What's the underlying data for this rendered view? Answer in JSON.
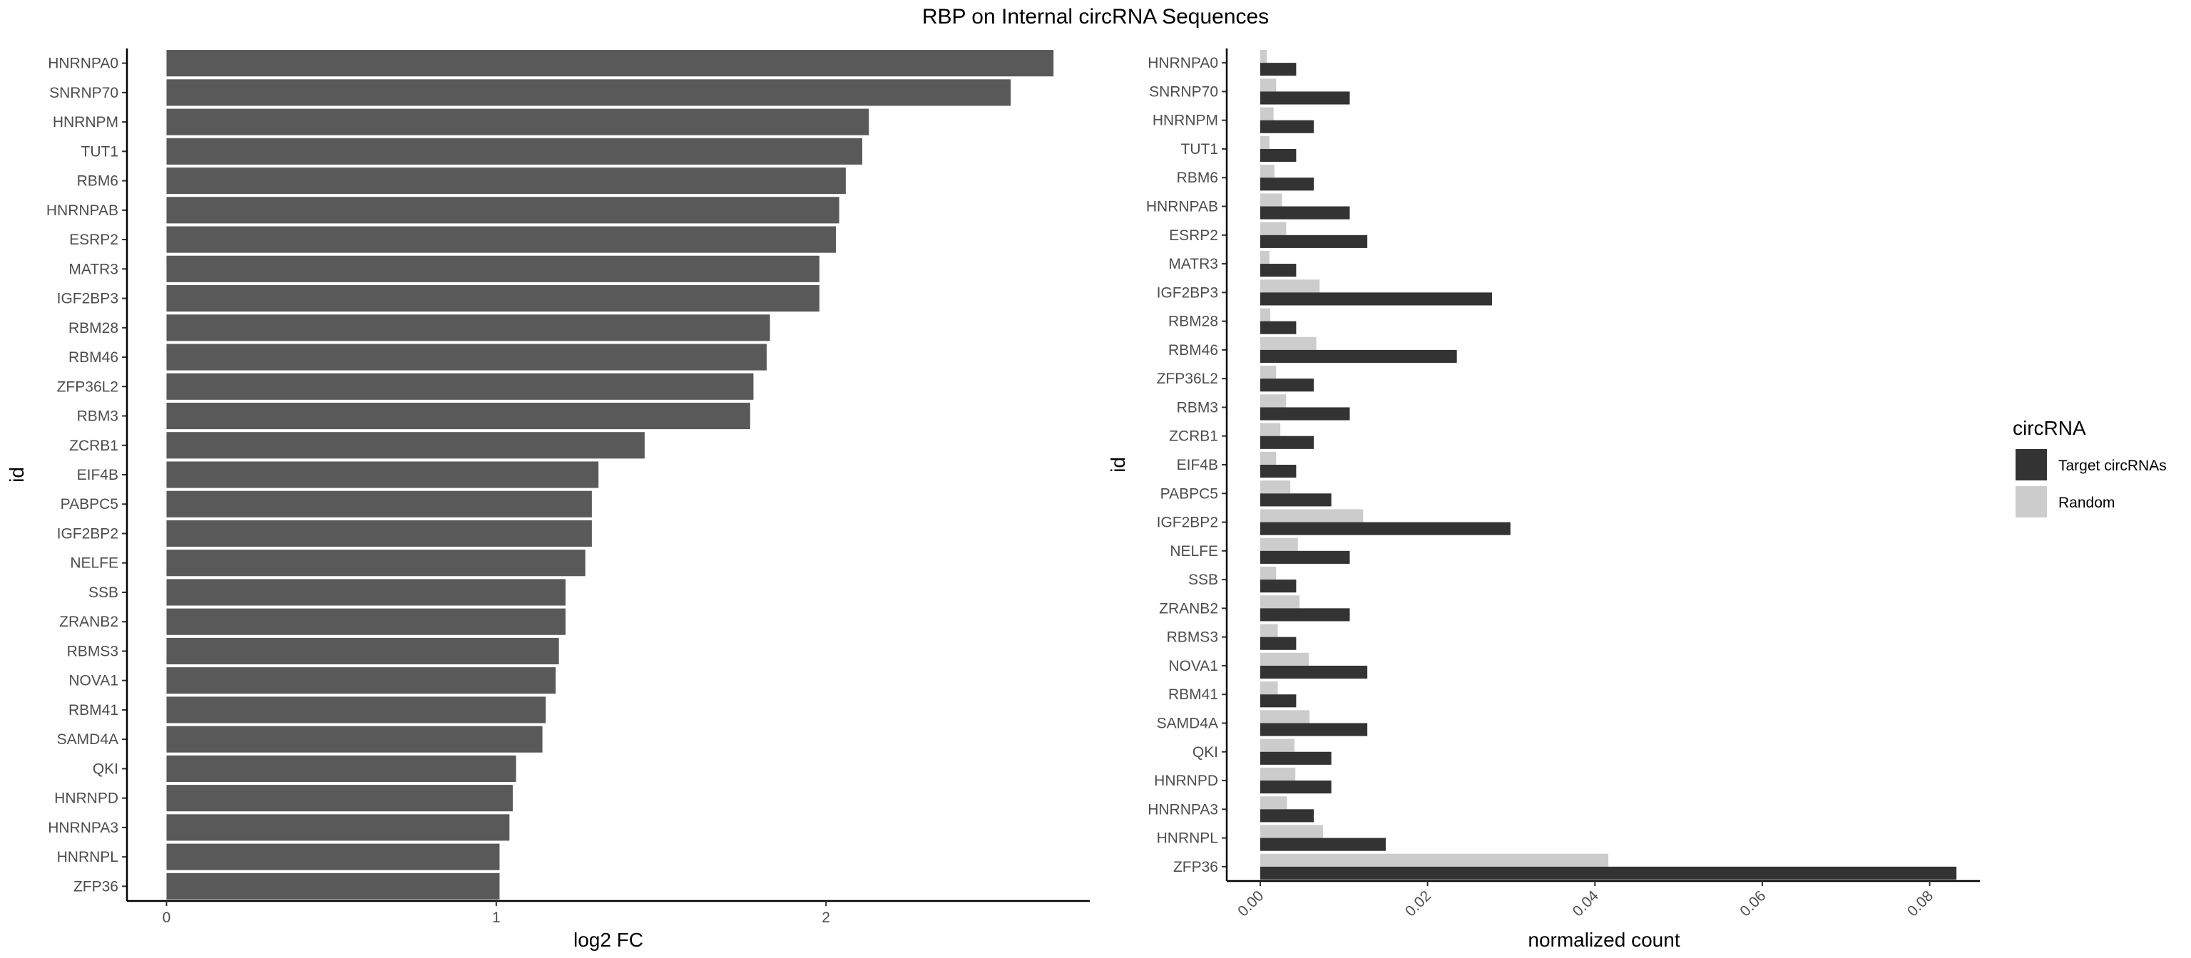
{
  "title": "RBP on Internal circRNA Sequences",
  "chart_data": [
    {
      "type": "bar",
      "orientation": "horizontal",
      "xlabel": "log2 FC",
      "ylabel": "id",
      "xlim": [
        -0.12,
        2.8
      ],
      "xticks": [
        0,
        1,
        2
      ],
      "grid": false,
      "bar_color": "#595959",
      "categories": [
        "HNRNPA0",
        "SNRNP70",
        "HNRNPM",
        "TUT1",
        "RBM6",
        "HNRNPAB",
        "ESRP2",
        "MATR3",
        "IGF2BP3",
        "RBM28",
        "RBM46",
        "ZFP36L2",
        "RBM3",
        "ZCRB1",
        "EIF4B",
        "PABPC5",
        "IGF2BP2",
        "NELFE",
        "SSB",
        "ZRANB2",
        "RBMS3",
        "NOVA1",
        "RBM41",
        "SAMD4A",
        "QKI",
        "HNRNPD",
        "HNRNPA3",
        "HNRNPL",
        "ZFP36"
      ],
      "values": [
        2.69,
        2.56,
        2.13,
        2.11,
        2.06,
        2.04,
        2.03,
        1.98,
        1.98,
        1.83,
        1.82,
        1.78,
        1.77,
        1.45,
        1.31,
        1.29,
        1.29,
        1.27,
        1.21,
        1.21,
        1.19,
        1.18,
        1.15,
        1.14,
        1.06,
        1.05,
        1.04,
        1.01,
        1.01
      ]
    },
    {
      "type": "bar",
      "orientation": "horizontal",
      "grouped": true,
      "xlabel": "normalized count",
      "ylabel": "id",
      "xlim": [
        -0.004,
        0.086
      ],
      "xticks": [
        0.0,
        0.02,
        0.04,
        0.06,
        0.08
      ],
      "xtick_labels": [
        "0.00",
        "0.02",
        "0.04",
        "0.06",
        "0.08"
      ],
      "grid": false,
      "categories": [
        "HNRNPA0",
        "SNRNP70",
        "HNRNPM",
        "TUT1",
        "RBM6",
        "HNRNPAB",
        "ESRP2",
        "MATR3",
        "IGF2BP3",
        "RBM28",
        "RBM46",
        "ZFP36L2",
        "RBM3",
        "ZCRB1",
        "EIF4B",
        "PABPC5",
        "IGF2BP2",
        "NELFE",
        "SSB",
        "ZRANB2",
        "RBMS3",
        "NOVA1",
        "RBM41",
        "SAMD4A",
        "QKI",
        "HNRNPD",
        "HNRNPA3",
        "HNRNPL",
        "ZFP36"
      ],
      "legend": {
        "title": "circRNA",
        "placement": "right"
      },
      "series": [
        {
          "name": "Target circRNAs",
          "color": "#333333",
          "values": [
            0.0043,
            0.0107,
            0.0064,
            0.0043,
            0.0064,
            0.0107,
            0.0128,
            0.0043,
            0.0277,
            0.0043,
            0.0235,
            0.0064,
            0.0107,
            0.0064,
            0.0043,
            0.0085,
            0.0299,
            0.0107,
            0.0043,
            0.0107,
            0.0043,
            0.0128,
            0.0043,
            0.0128,
            0.0085,
            0.0085,
            0.0064,
            0.015,
            0.0832
          ]
        },
        {
          "name": "Random",
          "color": "#cccccc",
          "values": [
            0.0008,
            0.0019,
            0.0016,
            0.0011,
            0.0017,
            0.0026,
            0.0031,
            0.0011,
            0.0071,
            0.0012,
            0.0067,
            0.0019,
            0.0031,
            0.0024,
            0.0019,
            0.0036,
            0.0123,
            0.0045,
            0.0019,
            0.0047,
            0.0021,
            0.0058,
            0.0021,
            0.0059,
            0.0041,
            0.0042,
            0.0032,
            0.0075,
            0.0416
          ]
        }
      ]
    }
  ]
}
